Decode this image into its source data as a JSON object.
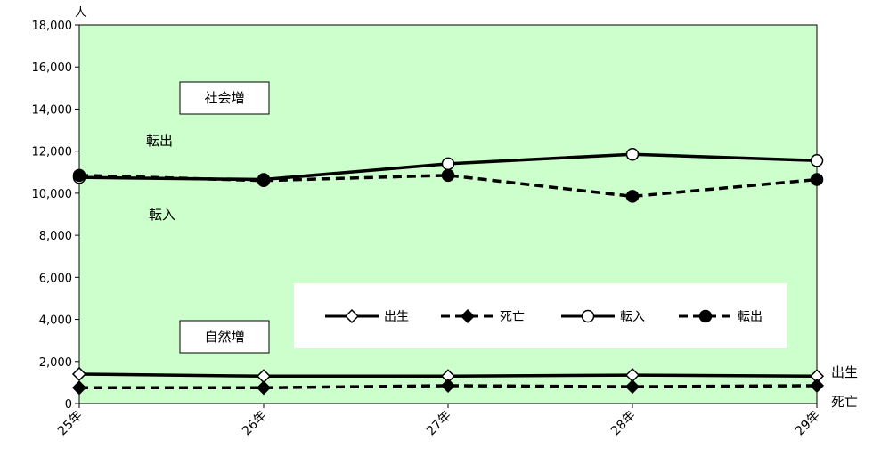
{
  "chart_data": {
    "type": "line",
    "y_unit": "人",
    "categories": [
      "25年",
      "26年",
      "27年",
      "28年",
      "29年"
    ],
    "ylim": [
      0,
      18000
    ],
    "yticks": [
      "0",
      "2,000",
      "4,000",
      "6,000",
      "8,000",
      "10,000",
      "12,000",
      "14,000",
      "16,000",
      "18,000"
    ],
    "grid": false,
    "plot_background": "#ccffcc",
    "legend_position": "center-right",
    "series": [
      {
        "name": "出生",
        "values": [
          1400,
          1300,
          1300,
          1350,
          1300
        ],
        "line": "solid",
        "marker": "open-diamond",
        "color": "#000000"
      },
      {
        "name": "死亡",
        "values": [
          750,
          750,
          850,
          800,
          850
        ],
        "line": "dashed",
        "marker": "filled-diamond",
        "color": "#000000"
      },
      {
        "name": "転入",
        "values": [
          10750,
          10650,
          11400,
          11850,
          11550
        ],
        "line": "solid",
        "marker": "open-circle",
        "color": "#000000"
      },
      {
        "name": "転出",
        "values": [
          10850,
          10600,
          10850,
          9850,
          10650
        ],
        "line": "dashed",
        "marker": "filled-circle",
        "color": "#000000"
      }
    ],
    "annotations": {
      "social_box": "社会増",
      "natural_box": "自然増",
      "tenshutsu": "転出",
      "tennyu": "転入",
      "right_birth": "出生",
      "right_death": "死亡"
    }
  }
}
